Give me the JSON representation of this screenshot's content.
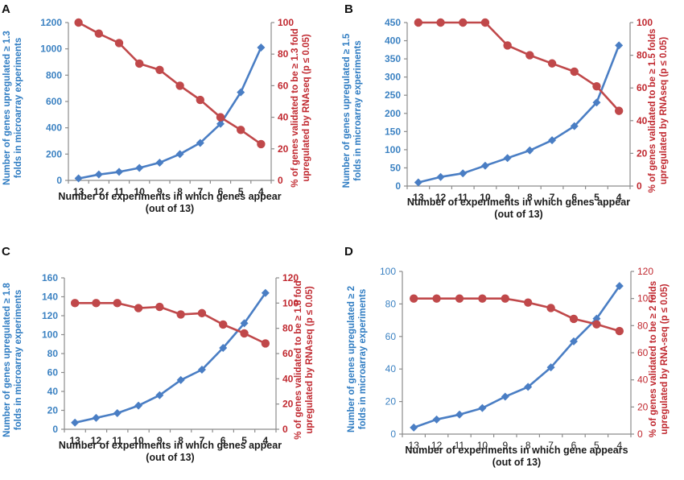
{
  "colors": {
    "blue_series": "#4a7ec4",
    "red_series": "#c0484a",
    "blue_text": "#3a86c8",
    "red_text": "#c0282f"
  },
  "chart_data": [
    {
      "type": "line",
      "panel": "A",
      "categories": [
        "13",
        "12",
        "11",
        "10",
        "9",
        "8",
        "7",
        "6",
        "5",
        "4"
      ],
      "xlabel": [
        "Number of experiments in which genes appear",
        "(out of 13)"
      ],
      "ylabel_left": [
        "Number of genes upregulated ≥ 1.3",
        "folds in microarray experiments"
      ],
      "ylabel_right": [
        "% of genes validated to be ≥ 1.3 fold",
        "upregulated by RNAseq  (p ≤ 0.05)"
      ],
      "ylim_left": [
        0,
        1200
      ],
      "yticks_left": [
        0,
        200,
        400,
        600,
        800,
        1000,
        1200
      ],
      "ylim_right": [
        0,
        100
      ],
      "yticks_right": [
        0,
        20,
        40,
        60,
        80,
        100
      ],
      "grid": false,
      "legend": "none",
      "series": [
        {
          "name": "Number of genes upregulated (microarray)",
          "axis": "left",
          "marker": "diamond",
          "values": [
            15,
            45,
            65,
            95,
            135,
            200,
            285,
            430,
            670,
            1010
          ]
        },
        {
          "name": "% validated by RNAseq",
          "axis": "right",
          "marker": "circle",
          "values": [
            100,
            93,
            87,
            74,
            70,
            60,
            51,
            40,
            32,
            23
          ]
        }
      ]
    },
    {
      "type": "line",
      "panel": "B",
      "categories": [
        "13",
        "12",
        "11",
        "10",
        "9",
        "8",
        "7",
        "6",
        "5",
        "4"
      ],
      "xlabel": [
        "Number of experiments in which genes appear",
        "(out of 13)"
      ],
      "ylabel_left": [
        "Number of genes upregulated ≥ 1.5",
        "folds in microarray experiments"
      ],
      "ylabel_right": [
        "% of genes validated to be ≥ 1.5 folds",
        "upregulated by RNAseq  (p ≤ 0.05)"
      ],
      "ylim_left": [
        0,
        450
      ],
      "yticks_left": [
        0,
        50,
        100,
        150,
        200,
        250,
        300,
        350,
        400,
        450
      ],
      "ylim_right": [
        0,
        100
      ],
      "yticks_right": [
        0,
        20,
        40,
        60,
        80,
        100
      ],
      "grid": false,
      "legend": "none",
      "series": [
        {
          "name": "Number of genes upregulated (microarray)",
          "axis": "left",
          "marker": "diamond",
          "values": [
            10,
            25,
            35,
            56,
            77,
            98,
            126,
            165,
            230,
            387
          ]
        },
        {
          "name": "% validated by RNAseq",
          "axis": "right",
          "marker": "circle",
          "values": [
            100,
            100,
            100,
            100,
            86,
            80,
            75,
            70,
            61,
            46
          ]
        }
      ]
    },
    {
      "type": "line",
      "panel": "C",
      "categories": [
        "13",
        "12",
        "11",
        "10",
        "9",
        "8",
        "7",
        "6",
        "5",
        "4"
      ],
      "xlabel": [
        "Number of experiments in which genes appear",
        "(out of 13)"
      ],
      "ylabel_left": [
        "Number of genes upregulated ≥ 1.8",
        "folds in microarray experiments"
      ],
      "ylabel_right": [
        "% of genes validated to be ≥ 1.8 fold",
        "upregulated by RNAseq  (p ≤ 0.05)"
      ],
      "ylim_left": [
        0,
        160
      ],
      "yticks_left": [
        0,
        20,
        40,
        60,
        80,
        100,
        120,
        140,
        160
      ],
      "ylim_right": [
        0,
        120
      ],
      "yticks_right": [
        0,
        20,
        40,
        60,
        80,
        100,
        120
      ],
      "grid": false,
      "legend": "none",
      "series": [
        {
          "name": "Number of genes upregulated (microarray)",
          "axis": "left",
          "marker": "diamond",
          "values": [
            7,
            12,
            17,
            25,
            36,
            52,
            63,
            86,
            112,
            144
          ]
        },
        {
          "name": "% validated by RNAseq",
          "axis": "right",
          "marker": "circle",
          "values": [
            100,
            100,
            100,
            96,
            97,
            91,
            92,
            83,
            76,
            68
          ]
        }
      ]
    },
    {
      "type": "line",
      "panel": "D",
      "categories": [
        "13",
        "12",
        "11",
        "10",
        "9",
        "8",
        "7",
        "6",
        "5",
        "4"
      ],
      "xlabel": [
        "Number of experiments in which gene appears",
        "(out of 13)"
      ],
      "ylabel_left": [
        "Number of genes upregulated ≥ 2",
        "folds in microarray experiments"
      ],
      "ylabel_right": [
        "% of genes validated to be ≥ 2 folds",
        "upregulated by RNA-seq  (p ≤ 0.05)"
      ],
      "ylim_left": [
        0,
        100
      ],
      "yticks_left": [
        0,
        20,
        40,
        60,
        80,
        100
      ],
      "ylim_right": [
        0,
        120
      ],
      "yticks_right": [
        0,
        20,
        40,
        60,
        80,
        100,
        120
      ],
      "grid": false,
      "legend": "none",
      "series": [
        {
          "name": "Number of genes upregulated (microarray)",
          "axis": "left",
          "marker": "diamond",
          "values": [
            4,
            9,
            12,
            16,
            23,
            29,
            41,
            57,
            71,
            91
          ]
        },
        {
          "name": "% validated by RNA-seq",
          "axis": "right",
          "marker": "circle",
          "values": [
            100,
            100,
            100,
            100,
            100,
            97,
            93,
            85,
            81,
            76
          ]
        }
      ]
    }
  ]
}
